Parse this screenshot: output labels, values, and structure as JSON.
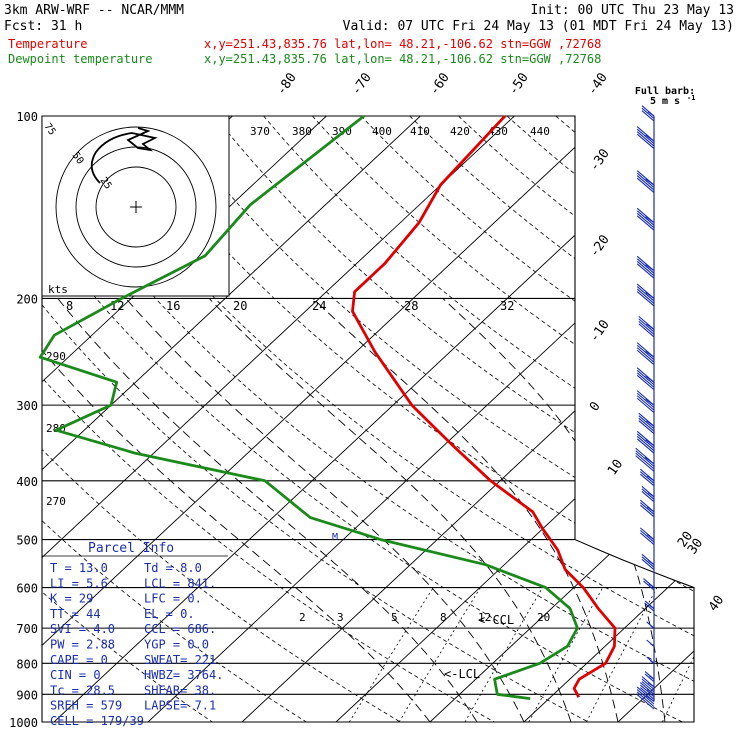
{
  "header": {
    "line1_left": "3km ARW-WRF -- NCAR/MMM",
    "line1_right": "Init: 00 UTC Thu 23 May 13",
    "line2_left": "Fcst:    31 h",
    "line2_right": "Valid: 07 UTC Fri 24 May 13 (01 MDT Fri 24 May 13)",
    "temp_label": "Temperature",
    "temp_loc": "x,y=251.43,835.76   lat,lon= 48.21,-106.62  stn=GGW ,72768",
    "dew_label": "Dewpoint temperature",
    "dew_loc": "x,y=251.43,835.76   lat,lon= 48.21,-106.62  stn=GGW ,72768"
  },
  "colors": {
    "temperature": "#e00000",
    "dewpoint": "#1a8a1a",
    "barbs": "#1a2fb0",
    "text_blue": "#1a2fb0"
  },
  "barb_legend": {
    "title": "Full barb:",
    "value": "5 m s"
  },
  "parcel_info": {
    "title": "Parcel Info",
    "rows": [
      [
        "T  =    13.0",
        "Td =   8.0"
      ],
      [
        "LI =     5.6",
        "LCL =  841."
      ],
      [
        "K  =      29",
        "LFC =    0."
      ],
      [
        "TT =      44",
        "EL  =    0."
      ],
      [
        "SVI =    4.0",
        "CCL =  686."
      ],
      [
        "PW =    2.88",
        "YGP =   0.0"
      ],
      [
        "CAPE =     0",
        "SWEAT=  221"
      ],
      [
        "CIN =      0",
        "HWBZ= 3764."
      ],
      [
        "Tc =    28.5",
        "SHEAR=  38."
      ],
      [
        "SREH =   579",
        "LAPSE=  7.1"
      ],
      [
        "CELL = 179/39",
        ""
      ]
    ]
  },
  "hodograph": {
    "units": "kts",
    "ring_labels": [
      "75",
      "50",
      "25"
    ],
    "speed_ticks": [
      "8",
      "12",
      "16",
      "20",
      "24",
      "28",
      "32"
    ]
  },
  "annotations": {
    "lcl_label": "<-LCL",
    "ccl_label": "<-CCL",
    "cat_marker": "M"
  },
  "chart_data": {
    "type": "skew-T log-P sounding",
    "pressure_levels": [
      100,
      200,
      300,
      400,
      500,
      600,
      700,
      800,
      900,
      1000
    ],
    "ylim_hpa": [
      1000,
      100
    ],
    "isotherm_labels": [
      "-80",
      "-70",
      "-60",
      "-50",
      "-40",
      "-30",
      "-20",
      "-10",
      "0",
      "10",
      "20",
      "30",
      "40"
    ],
    "dry_adiabat_labels": [
      "370",
      "380",
      "390",
      "400",
      "410",
      "420",
      "430",
      "440"
    ],
    "left_theta_labels": [
      "290",
      "280",
      "270"
    ],
    "mixing_ratio_labels": [
      "2",
      "3",
      "5",
      "8",
      "12",
      "20"
    ],
    "series": [
      {
        "name": "Temperature",
        "points": [
          [
            100,
            -61
          ],
          [
            130,
            -60
          ],
          [
            150,
            -58
          ],
          [
            175,
            -57
          ],
          [
            195,
            -57
          ],
          [
            210,
            -55
          ],
          [
            245,
            -48
          ],
          [
            300,
            -38
          ],
          [
            350,
            -29
          ],
          [
            400,
            -21
          ],
          [
            450,
            -13
          ],
          [
            480,
            -10
          ],
          [
            520,
            -6
          ],
          [
            560,
            -3
          ],
          [
            600,
            1
          ],
          [
            650,
            5
          ],
          [
            700,
            9
          ],
          [
            750,
            11
          ],
          [
            800,
            12
          ],
          [
            850,
            11
          ],
          [
            880,
            11.5
          ],
          [
            910,
            13
          ]
        ]
      },
      {
        "name": "Dewpoint temperature",
        "points": [
          [
            100,
            -76
          ],
          [
            140,
            -78
          ],
          [
            170,
            -77
          ],
          [
            200,
            -81
          ],
          [
            230,
            -84
          ],
          [
            250,
            -83
          ],
          [
            275,
            -72
          ],
          [
            300,
            -70
          ],
          [
            330,
            -73
          ],
          [
            360,
            -62
          ],
          [
            400,
            -45
          ],
          [
            460,
            -36
          ],
          [
            500,
            -26
          ],
          [
            550,
            -12
          ],
          [
            600,
            -3
          ],
          [
            650,
            2
          ],
          [
            700,
            5
          ],
          [
            750,
            6
          ],
          [
            800,
            5
          ],
          [
            850,
            2
          ],
          [
            900,
            4
          ],
          [
            915,
            8
          ]
        ]
      }
    ],
    "wind_barbs": [
      {
        "p": 100,
        "speed_kt": 25
      },
      {
        "p": 110,
        "speed_kt": 40
      },
      {
        "p": 130,
        "speed_kt": 40
      },
      {
        "p": 150,
        "speed_kt": 40
      },
      {
        "p": 180,
        "speed_kt": 40
      },
      {
        "p": 200,
        "speed_kt": 40
      },
      {
        "p": 225,
        "speed_kt": 35
      },
      {
        "p": 250,
        "speed_kt": 40
      },
      {
        "p": 275,
        "speed_kt": 40
      },
      {
        "p": 300,
        "speed_kt": 40
      },
      {
        "p": 325,
        "speed_kt": 35
      },
      {
        "p": 350,
        "speed_kt": 40
      },
      {
        "p": 375,
        "speed_kt": 45
      },
      {
        "p": 400,
        "speed_kt": 30
      },
      {
        "p": 425,
        "speed_kt": 25
      },
      {
        "p": 450,
        "speed_kt": 30
      },
      {
        "p": 500,
        "speed_kt": 30
      },
      {
        "p": 550,
        "speed_kt": 25
      },
      {
        "p": 600,
        "speed_kt": 20
      },
      {
        "p": 650,
        "speed_kt": 15
      },
      {
        "p": 700,
        "speed_kt": 10
      },
      {
        "p": 750,
        "speed_kt": 10
      },
      {
        "p": 800,
        "speed_kt": 10
      },
      {
        "p": 850,
        "speed_kt": 15
      },
      {
        "p": 875,
        "speed_kt": 25
      },
      {
        "p": 900,
        "speed_kt": 30
      },
      {
        "p": 925,
        "speed_kt": 40
      }
    ]
  }
}
